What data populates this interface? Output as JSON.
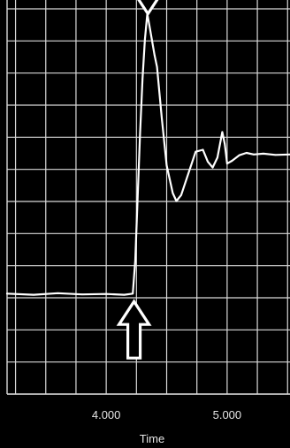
{
  "chart_data": {
    "type": "line",
    "xlabel": "Time",
    "xlim": [
      3.18,
      5.52
    ],
    "ylim": [
      0,
      1
    ],
    "x_ticks": [
      {
        "value": 4.0,
        "label": "4.000"
      },
      {
        "value": 5.0,
        "label": "5.000"
      }
    ],
    "grid": true,
    "background": "#000000",
    "grid_color": "#d9d9d9",
    "line_color": "#ffffff",
    "series": [
      {
        "values": [
          {
            "x": 3.18,
            "y": 0.255
          },
          {
            "x": 3.4,
            "y": 0.252
          },
          {
            "x": 3.6,
            "y": 0.256
          },
          {
            "x": 3.8,
            "y": 0.253
          },
          {
            "x": 4.0,
            "y": 0.254
          },
          {
            "x": 4.15,
            "y": 0.252
          },
          {
            "x": 4.22,
            "y": 0.255
          },
          {
            "x": 4.24,
            "y": 0.34
          },
          {
            "x": 4.26,
            "y": 0.5
          },
          {
            "x": 4.28,
            "y": 0.66
          },
          {
            "x": 4.3,
            "y": 0.8
          },
          {
            "x": 4.32,
            "y": 0.9
          },
          {
            "x": 4.34,
            "y": 0.965
          },
          {
            "x": 4.36,
            "y": 0.93
          },
          {
            "x": 4.4,
            "y": 0.86
          },
          {
            "x": 4.42,
            "y": 0.83
          },
          {
            "x": 4.46,
            "y": 0.7
          },
          {
            "x": 4.5,
            "y": 0.58
          },
          {
            "x": 4.55,
            "y": 0.51
          },
          {
            "x": 4.58,
            "y": 0.49
          },
          {
            "x": 4.62,
            "y": 0.505
          },
          {
            "x": 4.68,
            "y": 0.56
          },
          {
            "x": 4.74,
            "y": 0.615
          },
          {
            "x": 4.8,
            "y": 0.62
          },
          {
            "x": 4.84,
            "y": 0.59
          },
          {
            "x": 4.88,
            "y": 0.575
          },
          {
            "x": 4.92,
            "y": 0.6
          },
          {
            "x": 4.96,
            "y": 0.665
          },
          {
            "x": 4.98,
            "y": 0.635
          },
          {
            "x": 5.0,
            "y": 0.585
          },
          {
            "x": 5.04,
            "y": 0.592
          },
          {
            "x": 5.1,
            "y": 0.606
          },
          {
            "x": 5.16,
            "y": 0.612
          },
          {
            "x": 5.22,
            "y": 0.608
          },
          {
            "x": 5.3,
            "y": 0.61
          },
          {
            "x": 5.4,
            "y": 0.607
          },
          {
            "x": 5.52,
            "y": 0.608
          }
        ]
      }
    ],
    "annotations": [
      {
        "type": "arrow",
        "direction": "down",
        "x": 4.345,
        "y": 0.965
      },
      {
        "type": "arrow",
        "direction": "up",
        "x": 4.23,
        "y": 0.235
      }
    ]
  }
}
